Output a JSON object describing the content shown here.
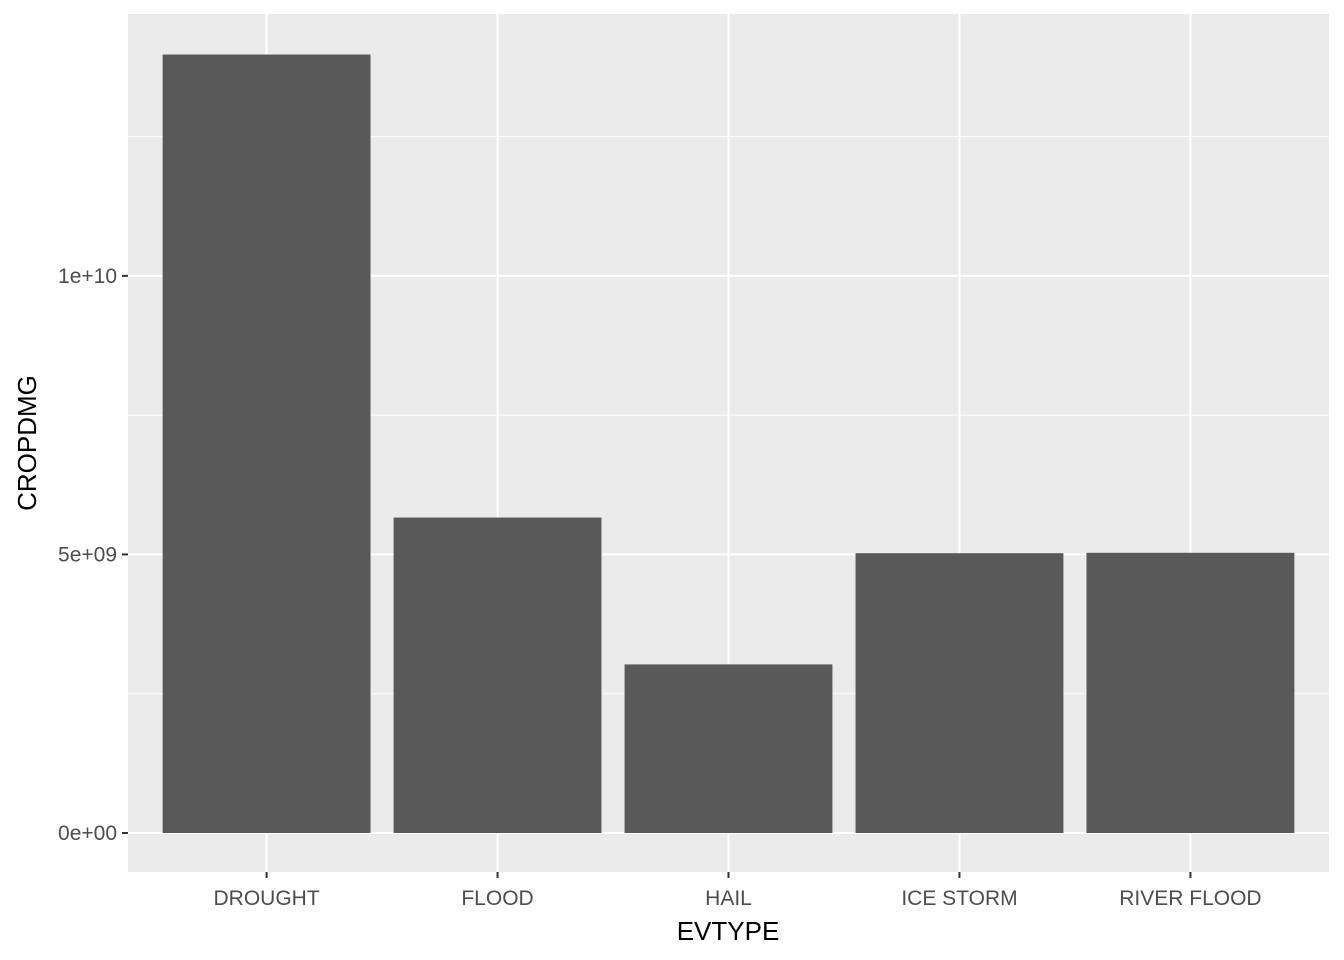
{
  "chart_data": {
    "type": "bar",
    "title": "",
    "xlabel": "EVTYPE",
    "ylabel": "CROPDMG",
    "categories": [
      "DROUGHT",
      "FLOOD",
      "HAIL",
      "ICE STORM",
      "RIVER FLOOD"
    ],
    "values": [
      13972566000,
      5661968450,
      3025974480,
      5022113500,
      5029459000
    ],
    "ylim": [
      -700000000,
      14700000000
    ],
    "y_ticks": [
      0,
      5000000000,
      10000000000
    ],
    "y_tick_labels": [
      "0e+00",
      "5e+09",
      "1e+10"
    ],
    "grid": true,
    "legend": "none",
    "colors": {
      "bar": "#595959",
      "panel": "#EBEBEB",
      "grid_major": "#FFFFFF",
      "tick": "#333333"
    }
  }
}
